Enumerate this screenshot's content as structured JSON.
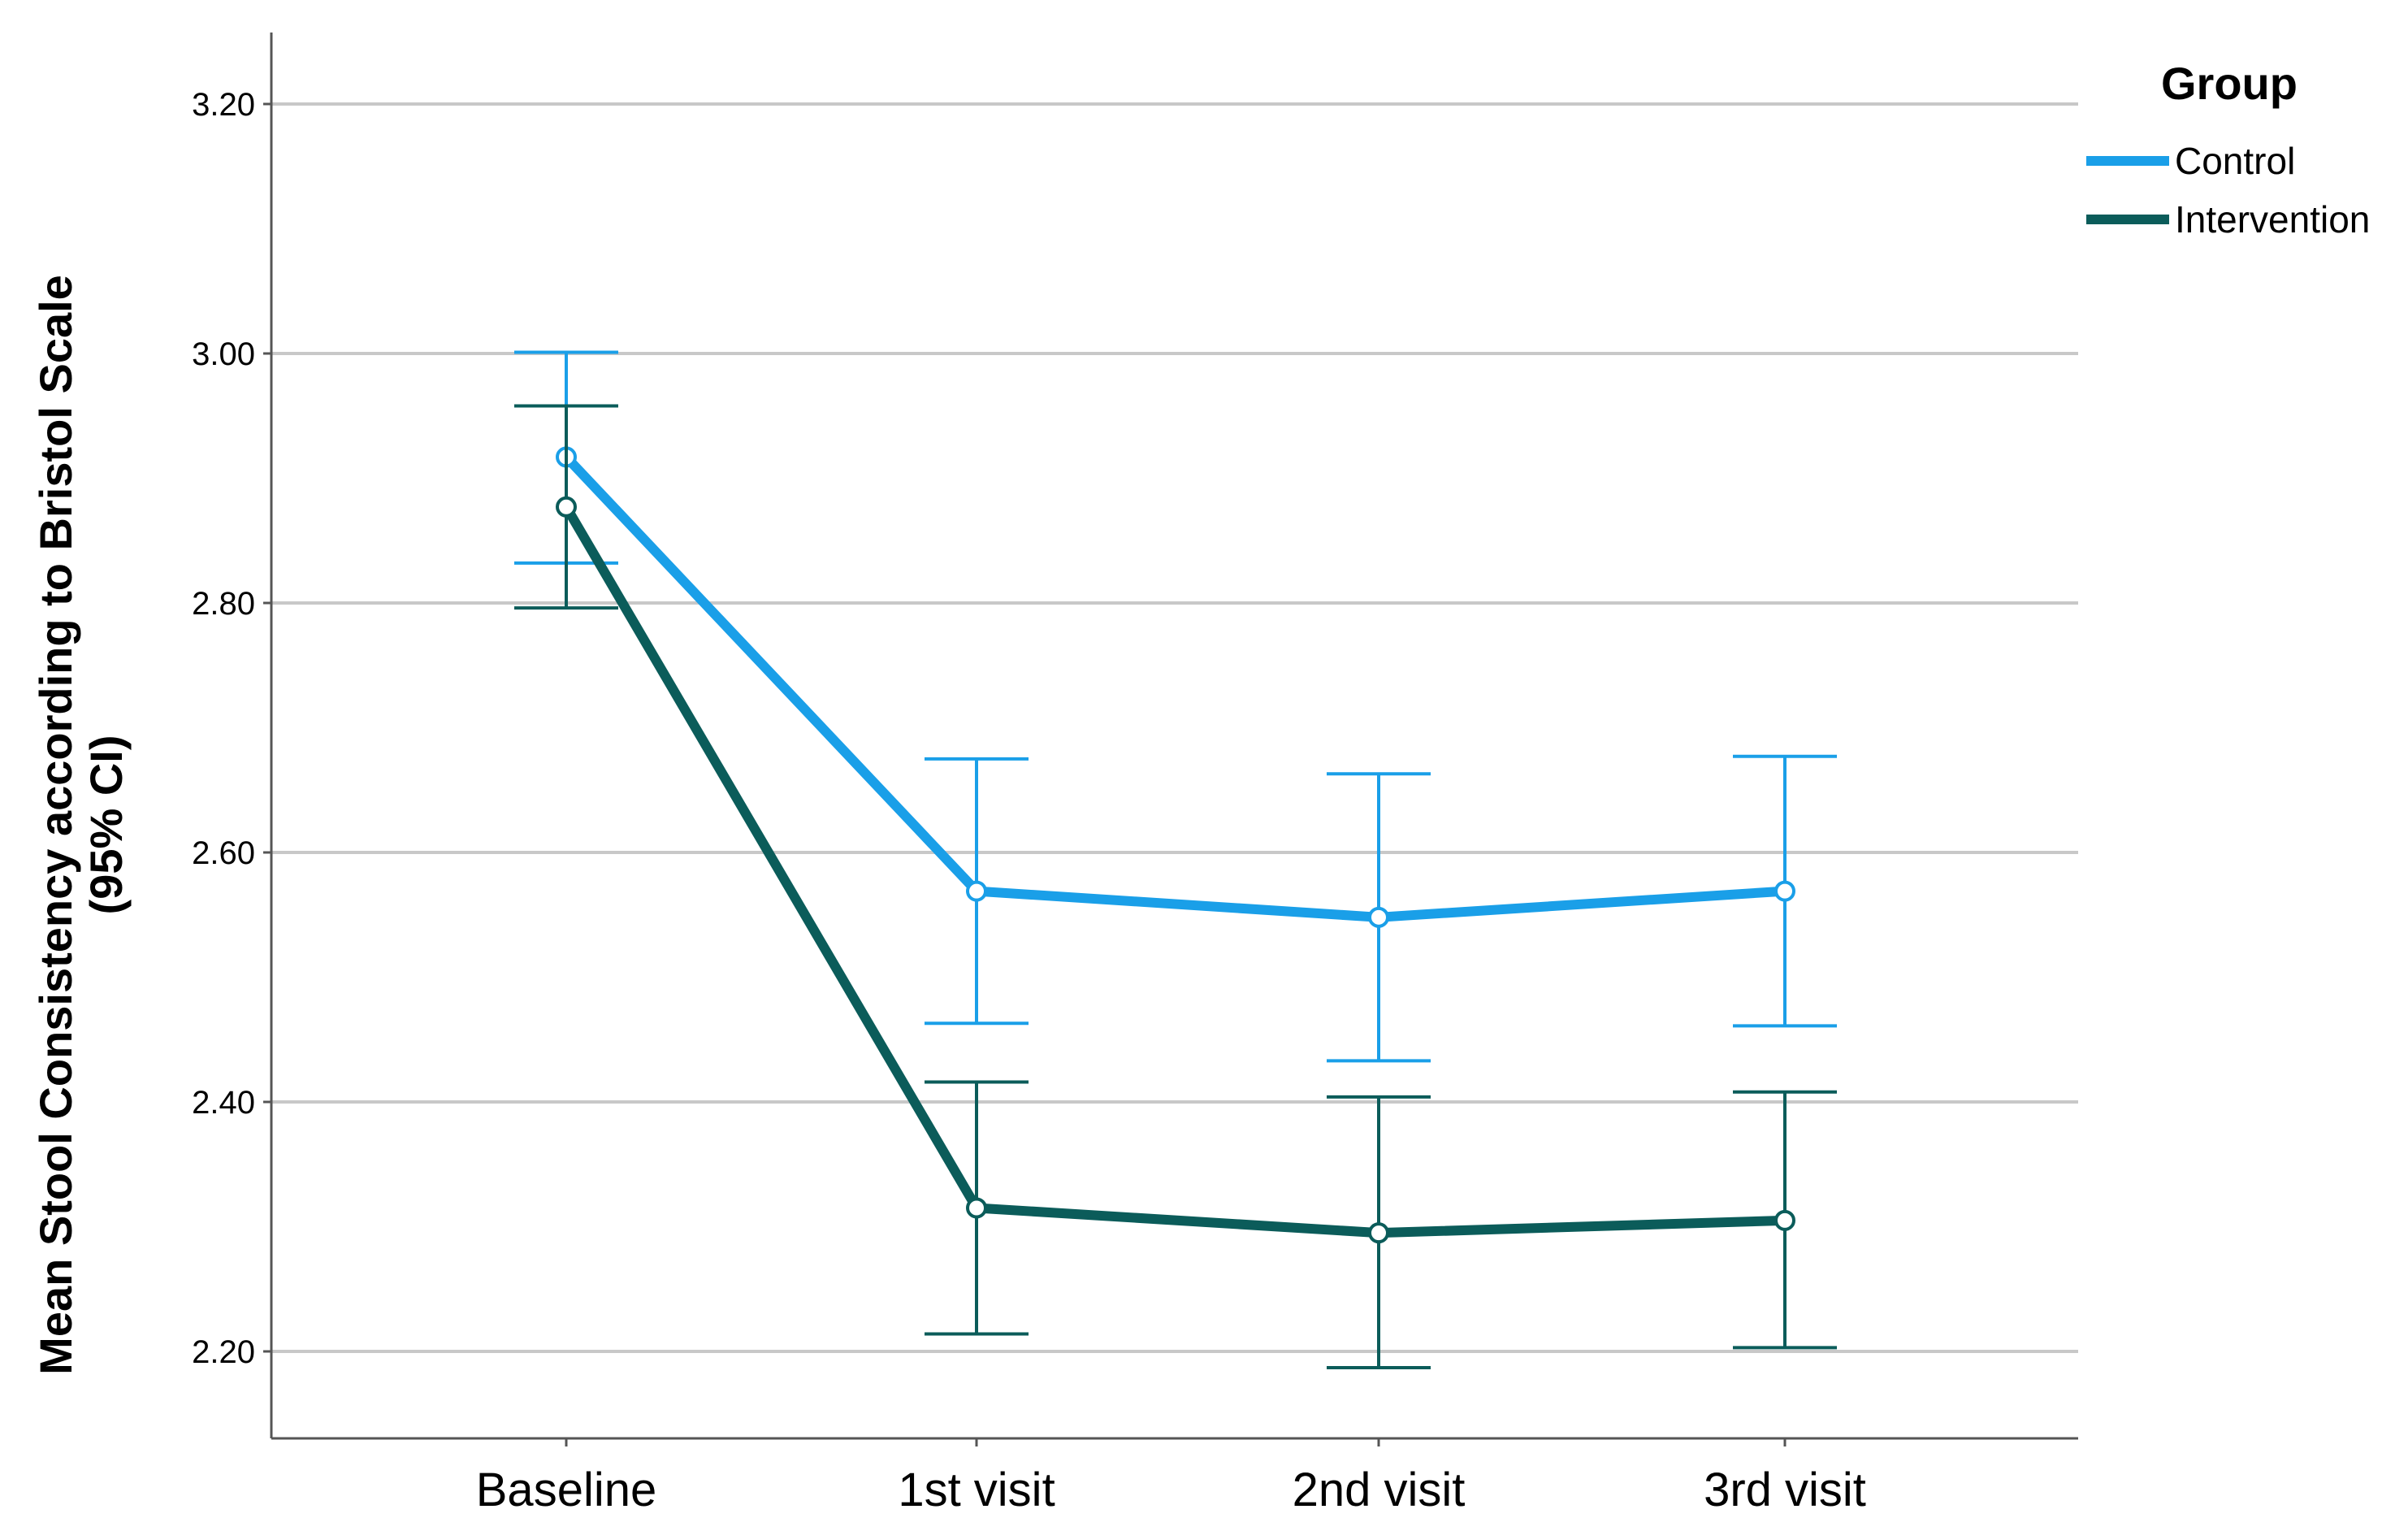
{
  "chart_data": {
    "type": "line",
    "ylabel": "Mean Stool Consistency according to Bristol Scale (95% CI)",
    "ylabel_lines": [
      "Mean Stool Consistency according to Bristol Scale",
      "(95% CI)"
    ],
    "xlabel": "",
    "categories": [
      "Baseline",
      "1st visit",
      "2nd visit",
      "3rd visit"
    ],
    "ylim": [
      2.13,
      3.26
    ],
    "yticks": [
      "2.20",
      "2.40",
      "2.60",
      "2.80",
      "3.00",
      "3.20"
    ],
    "ytick_values": [
      2.2,
      2.4,
      2.6,
      2.8,
      3.0,
      3.2
    ],
    "grid": true,
    "legend": {
      "title": "Group",
      "placement": "right"
    },
    "series": [
      {
        "name": "Control",
        "color": "#1a9fe8",
        "values": [
          2.917,
          2.569,
          2.548,
          2.569
        ],
        "ci_lower": [
          2.832,
          2.463,
          2.433,
          2.461
        ],
        "ci_upper": [
          3.001,
          2.675,
          2.663,
          2.677
        ]
      },
      {
        "name": "Intervention",
        "color": "#0b5c5a",
        "values": [
          2.877,
          2.315,
          2.295,
          2.305
        ],
        "ci_lower": [
          2.796,
          2.214,
          2.187,
          2.203
        ],
        "ci_upper": [
          2.958,
          2.416,
          2.404,
          2.408
        ]
      }
    ]
  }
}
